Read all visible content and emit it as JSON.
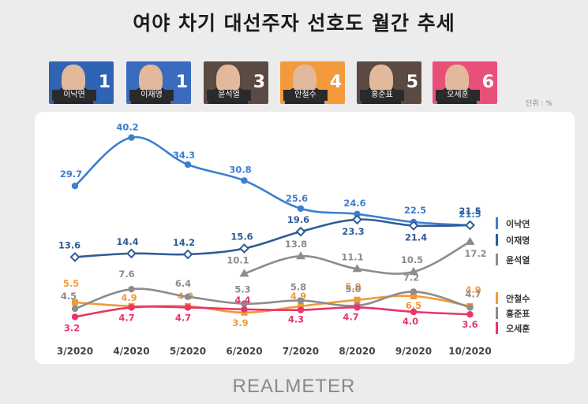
{
  "title": "여야 차기 대선주자 선호도 월간 추세",
  "unit": "단위 : %",
  "logo": "REALMETER",
  "candidates": [
    {
      "name": "이낙연",
      "rank": "1",
      "bg": "#2f63b4"
    },
    {
      "name": "이재명",
      "rank": "1",
      "bg": "#3b6bbf"
    },
    {
      "name": "윤석열",
      "rank": "3",
      "bg": "#5b4a42"
    },
    {
      "name": "안철수",
      "rank": "4",
      "bg": "#f39a3c"
    },
    {
      "name": "홍준표",
      "rank": "5",
      "bg": "#5b4a42"
    },
    {
      "name": "오세훈",
      "rank": "6",
      "bg": "#e8507a"
    }
  ],
  "chart_data": {
    "type": "line",
    "categories": [
      "3/2020",
      "4/2020",
      "5/2020",
      "6/2020",
      "7/2020",
      "8/2020",
      "9/2020",
      "10/2020"
    ],
    "ylim": [
      0,
      42
    ],
    "legend_position": "right",
    "grid": false,
    "series": [
      {
        "name": "이낙연",
        "color": "#3b7fd0",
        "marker": "circle",
        "values": [
          29.7,
          40.2,
          34.3,
          30.8,
          25.6,
          24.6,
          22.5,
          21.5
        ],
        "labels": [
          "29.7",
          "40.2",
          "34.3",
          "30.8",
          "25.6",
          "24.6",
          "22.5",
          "21.5"
        ]
      },
      {
        "name": "이재명",
        "color": "#2f5c96",
        "marker": "diamond",
        "values": [
          13.6,
          14.4,
          14.2,
          15.6,
          19.6,
          23.3,
          21.4,
          21.5
        ],
        "labels": [
          "13.6",
          "14.4",
          "14.2",
          "15.6",
          "19.6",
          "23.3",
          "21.4",
          "21.5"
        ]
      },
      {
        "name": "윤석열",
        "color": "#8c8c8c",
        "marker": "triangle",
        "values": [
          null,
          null,
          null,
          10.1,
          13.8,
          11.1,
          10.5,
          17.2
        ],
        "labels": [
          "",
          "",
          "",
          "10.1",
          "13.8",
          "11.1",
          "10.5",
          "17.2"
        ]
      },
      {
        "name": "안철수",
        "color": "#f29a38",
        "marker": "square",
        "values": [
          5.5,
          4.9,
          4.9,
          3.9,
          4.9,
          5.9,
          6.5,
          4.9
        ],
        "labels": [
          "5.5",
          "4.9",
          "4.9",
          "3.9",
          "4.9",
          "5.9",
          "6.5",
          "4.9"
        ]
      },
      {
        "name": "홍준표",
        "color": "#8c8c8c",
        "marker": "circle",
        "values": [
          4.5,
          7.6,
          6.4,
          5.3,
          5.8,
          5.0,
          7.2,
          4.7
        ],
        "labels": [
          "4.5",
          "7.6",
          "6.4",
          "5.3",
          "5.8",
          "5.0",
          "7.2",
          "4.7"
        ]
      },
      {
        "name": "오세훈",
        "color": "#e8356a",
        "marker": "circle",
        "values": [
          3.2,
          4.7,
          4.7,
          4.4,
          4.3,
          4.7,
          4.0,
          3.6
        ],
        "labels": [
          "3.2",
          "4.7",
          "4.7",
          "4.4",
          "4.3",
          "4.7",
          "4.0",
          "3.6"
        ]
      }
    ]
  }
}
